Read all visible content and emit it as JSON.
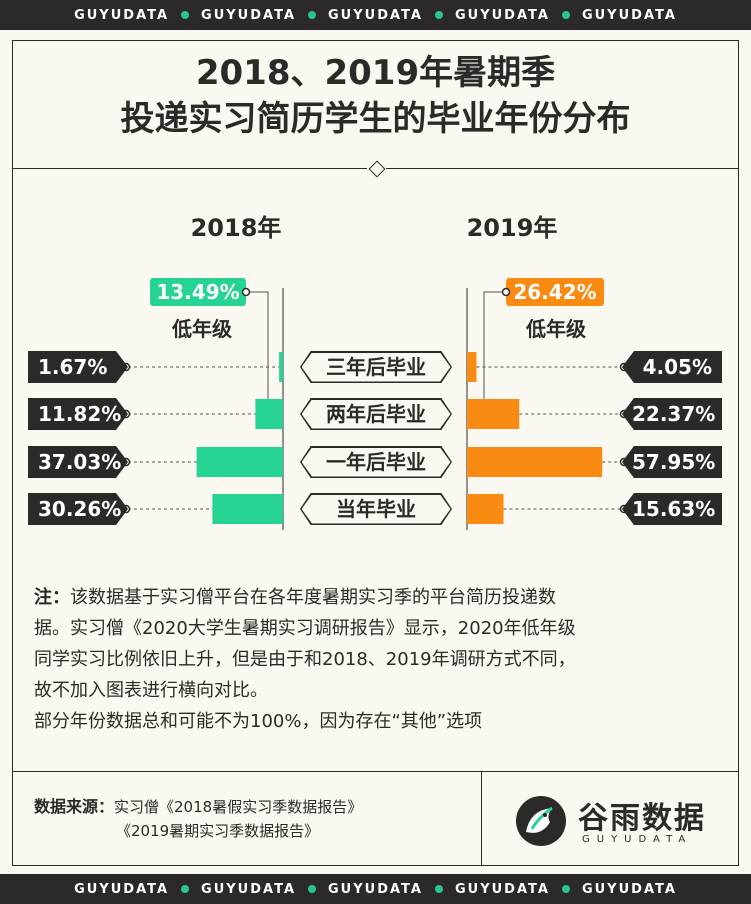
{
  "band_text": "GUYUDATA",
  "title": {
    "line1": "2018、2019年暑期季",
    "line2": "投递实习简历学生的毕业年份分布"
  },
  "chart_data": {
    "type": "bar",
    "categories": [
      "三年后毕业",
      "两年后毕业",
      "一年后毕业",
      "当年毕业"
    ],
    "series": [
      {
        "name": "2018年",
        "values": [
          1.67,
          11.82,
          37.03,
          30.26
        ],
        "labels": [
          "1.67%",
          "11.82%",
          "37.03%",
          "30.26%"
        ],
        "low_grade": "13.49%",
        "color": "#27d393"
      },
      {
        "name": "2019年",
        "values": [
          4.05,
          22.37,
          57.95,
          15.63
        ],
        "labels": [
          "4.05%",
          "22.37%",
          "57.95%",
          "15.63%"
        ],
        "low_grade": "26.42%",
        "color": "#f98a12"
      }
    ],
    "low_grade_label": "低年级",
    "max": 60
  },
  "note": {
    "prefix": "注：",
    "line1": "该数据基于实习僧平台在各年度暑期实习季的平台简历投递数",
    "line2": "据。实习僧《2020大学生暑期实习调研报告》显示，2020年低年级",
    "line3": "同学实习比例依旧上升，但是由于和2018、2019年调研方式不同，",
    "line4": "故不加入图表进行横向对比。",
    "line5": "部分年份数据总和可能不为100%，因为存在“其他”选项"
  },
  "source": {
    "label": "数据来源：",
    "line1": "实习僧《2018暑假实习季数据报告》",
    "line2": "《2019暑期实习季数据报告》"
  },
  "logo": {
    "name": "谷雨数据",
    "sub": "GUYUDATA"
  }
}
